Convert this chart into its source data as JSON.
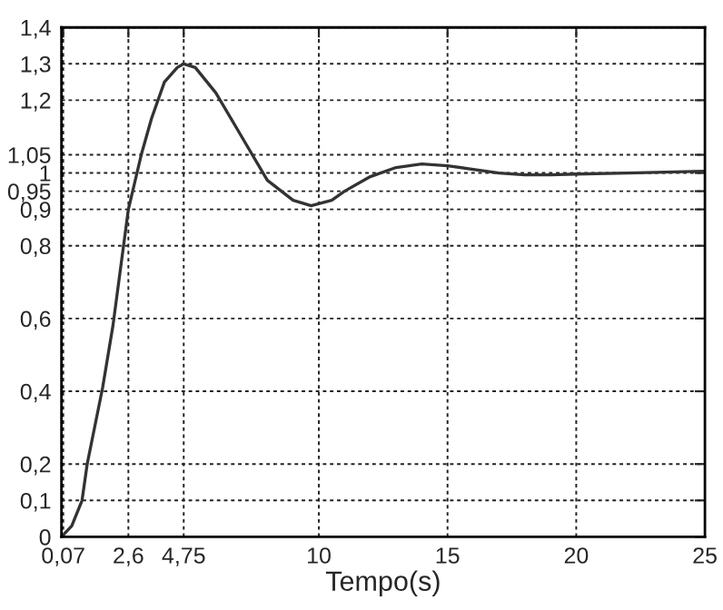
{
  "chart_data": {
    "type": "line",
    "xlabel": "Tempo(s)",
    "x": [
      0,
      0.4,
      0.8,
      1.0,
      1.6,
      2.0,
      2.6,
      3.1,
      3.5,
      4.0,
      4.5,
      4.75,
      5.2,
      6,
      7,
      8,
      9,
      9.7,
      10.5,
      11,
      12,
      13,
      14,
      15,
      16,
      17,
      18,
      19,
      20,
      22,
      25
    ],
    "series": [
      {
        "color": "#333333",
        "values": [
          0,
          0.03,
          0.1,
          0.2,
          0.41,
          0.58,
          0.9,
          1.05,
          1.15,
          1.25,
          1.29,
          1.3,
          1.29,
          1.22,
          1.1,
          0.98,
          0.925,
          0.91,
          0.925,
          0.95,
          0.99,
          1.015,
          1.025,
          1.02,
          1.01,
          1.0,
          0.995,
          0.995,
          0.997,
          1.0,
          1.005
        ]
      }
    ],
    "xlim": [
      0,
      25
    ],
    "ylim": [
      0,
      1.4
    ],
    "xticks": [
      {
        "value": 0.07,
        "label": "0,07"
      },
      {
        "value": 2.6,
        "label": "2,6"
      },
      {
        "value": 4.75,
        "label": "4,75"
      },
      {
        "value": 10,
        "label": "10"
      },
      {
        "value": 15,
        "label": "15"
      },
      {
        "value": 20,
        "label": "20"
      },
      {
        "value": 25,
        "label": "25"
      }
    ],
    "yticks": [
      {
        "value": 0,
        "label": "0"
      },
      {
        "value": 0.1,
        "label": "0,1"
      },
      {
        "value": 0.2,
        "label": "0,2"
      },
      {
        "value": 0.4,
        "label": "0,4"
      },
      {
        "value": 0.6,
        "label": "0,6"
      },
      {
        "value": 0.8,
        "label": "0,8"
      },
      {
        "value": 0.9,
        "label": "0,9"
      },
      {
        "value": 0.95,
        "label": "0,95"
      },
      {
        "value": 1,
        "label": "1"
      },
      {
        "value": 1.05,
        "label": "1,05"
      },
      {
        "value": 1.2,
        "label": "1,2"
      },
      {
        "value": 1.3,
        "label": "1,3"
      },
      {
        "value": 1.4,
        "label": "1,4"
      }
    ],
    "grid": true,
    "marker": "none",
    "line_style": "solid",
    "legend": false
  }
}
